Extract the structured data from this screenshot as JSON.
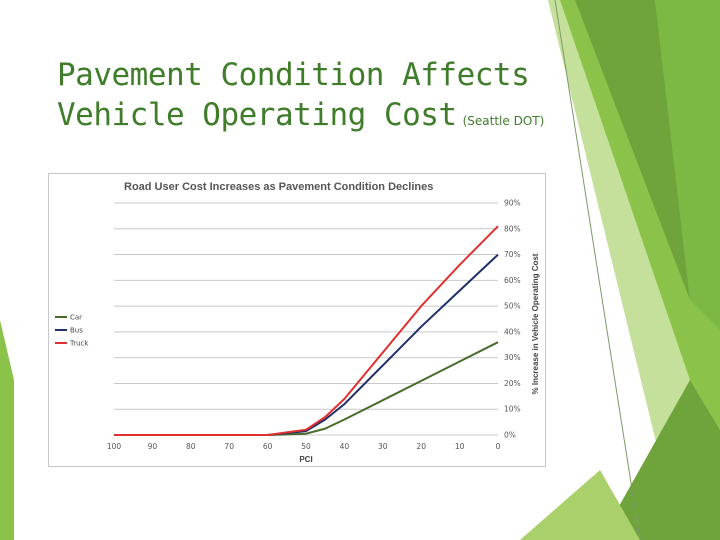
{
  "slide": {
    "title_line1": "Pavement Condition Affects",
    "title_line2": "Vehicle Operating Cost",
    "source": "(Seattle DOT)",
    "accent_colors": [
      "#8bc34a",
      "#6fa33b",
      "#4e8a2b",
      "#c5e09a"
    ]
  },
  "chart_data": {
    "type": "line",
    "title": "Road User Cost Increases as Pavement Condition Declines",
    "xlabel": "PCI",
    "ylabel": "% Increase in Vehicle Operating Cost",
    "xlim": [
      100,
      0
    ],
    "ylim": [
      0,
      90
    ],
    "x_ticks": [
      "100",
      "90",
      "80",
      "70",
      "60",
      "50",
      "40",
      "30",
      "20",
      "10",
      "0"
    ],
    "y_ticks": [
      "0%",
      "10%",
      "20%",
      "30%",
      "40%",
      "50%",
      "60%",
      "70%",
      "80%",
      "90%"
    ],
    "legend_position": "left",
    "series": [
      {
        "name": "Car",
        "color": "#4a6b2a",
        "x": [
          100,
          60,
          50,
          45,
          40,
          30,
          20,
          10,
          0
        ],
        "y": [
          0,
          0,
          0.5,
          2.5,
          6,
          13.5,
          21,
          28.5,
          36
        ]
      },
      {
        "name": "Bus",
        "color": "#1f2f6b",
        "x": [
          100,
          60,
          50,
          45,
          40,
          30,
          20,
          10,
          0
        ],
        "y": [
          0,
          0,
          1.5,
          6,
          12,
          27,
          42,
          56,
          70
        ]
      },
      {
        "name": "Truck",
        "color": "#e03030",
        "x": [
          100,
          60,
          50,
          45,
          40,
          30,
          20,
          10,
          0
        ],
        "y": [
          0,
          0,
          2,
          7,
          14,
          32,
          50,
          66,
          81
        ]
      }
    ]
  }
}
